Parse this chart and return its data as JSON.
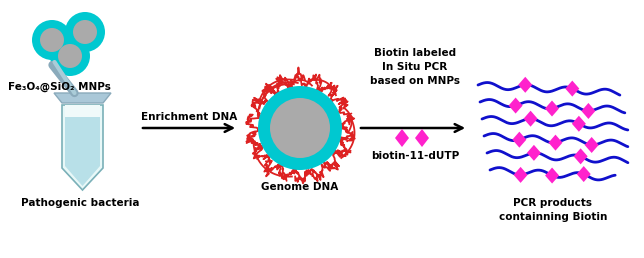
{
  "bg_color": "#ffffff",
  "mnp_color_outer": "#00c8d0",
  "mnp_color_inner": "#aaaaaa",
  "tube_color_light": "#d6f0f0",
  "tube_color_liquid": "#b8e0e8",
  "tube_border": "#7ab0b8",
  "tube_cap_color": "#aac8d8",
  "dna_color": "#dd2222",
  "genome_outer": "#00c8d0",
  "genome_inner": "#aaaaaa",
  "arrow_color": "#000000",
  "biotin_color": "#ff22cc",
  "line_color": "#1010cc",
  "label_fe3o4": "Fe₃O₄@SiO₂ MNPs",
  "label_bacteria": "Pathogenic bacteria",
  "label_enrichment": "Enrichment DNA",
  "label_genome": "Genome DNA",
  "label_biotin_top": "Biotin labeled\nIn Situ PCR\nbased on MNPs",
  "label_biotin_bottom": "biotin-11-dUTP",
  "label_pcr": "PCR products\ncontainning Biotin",
  "fig_width": 6.44,
  "fig_height": 2.58,
  "dpi": 100
}
